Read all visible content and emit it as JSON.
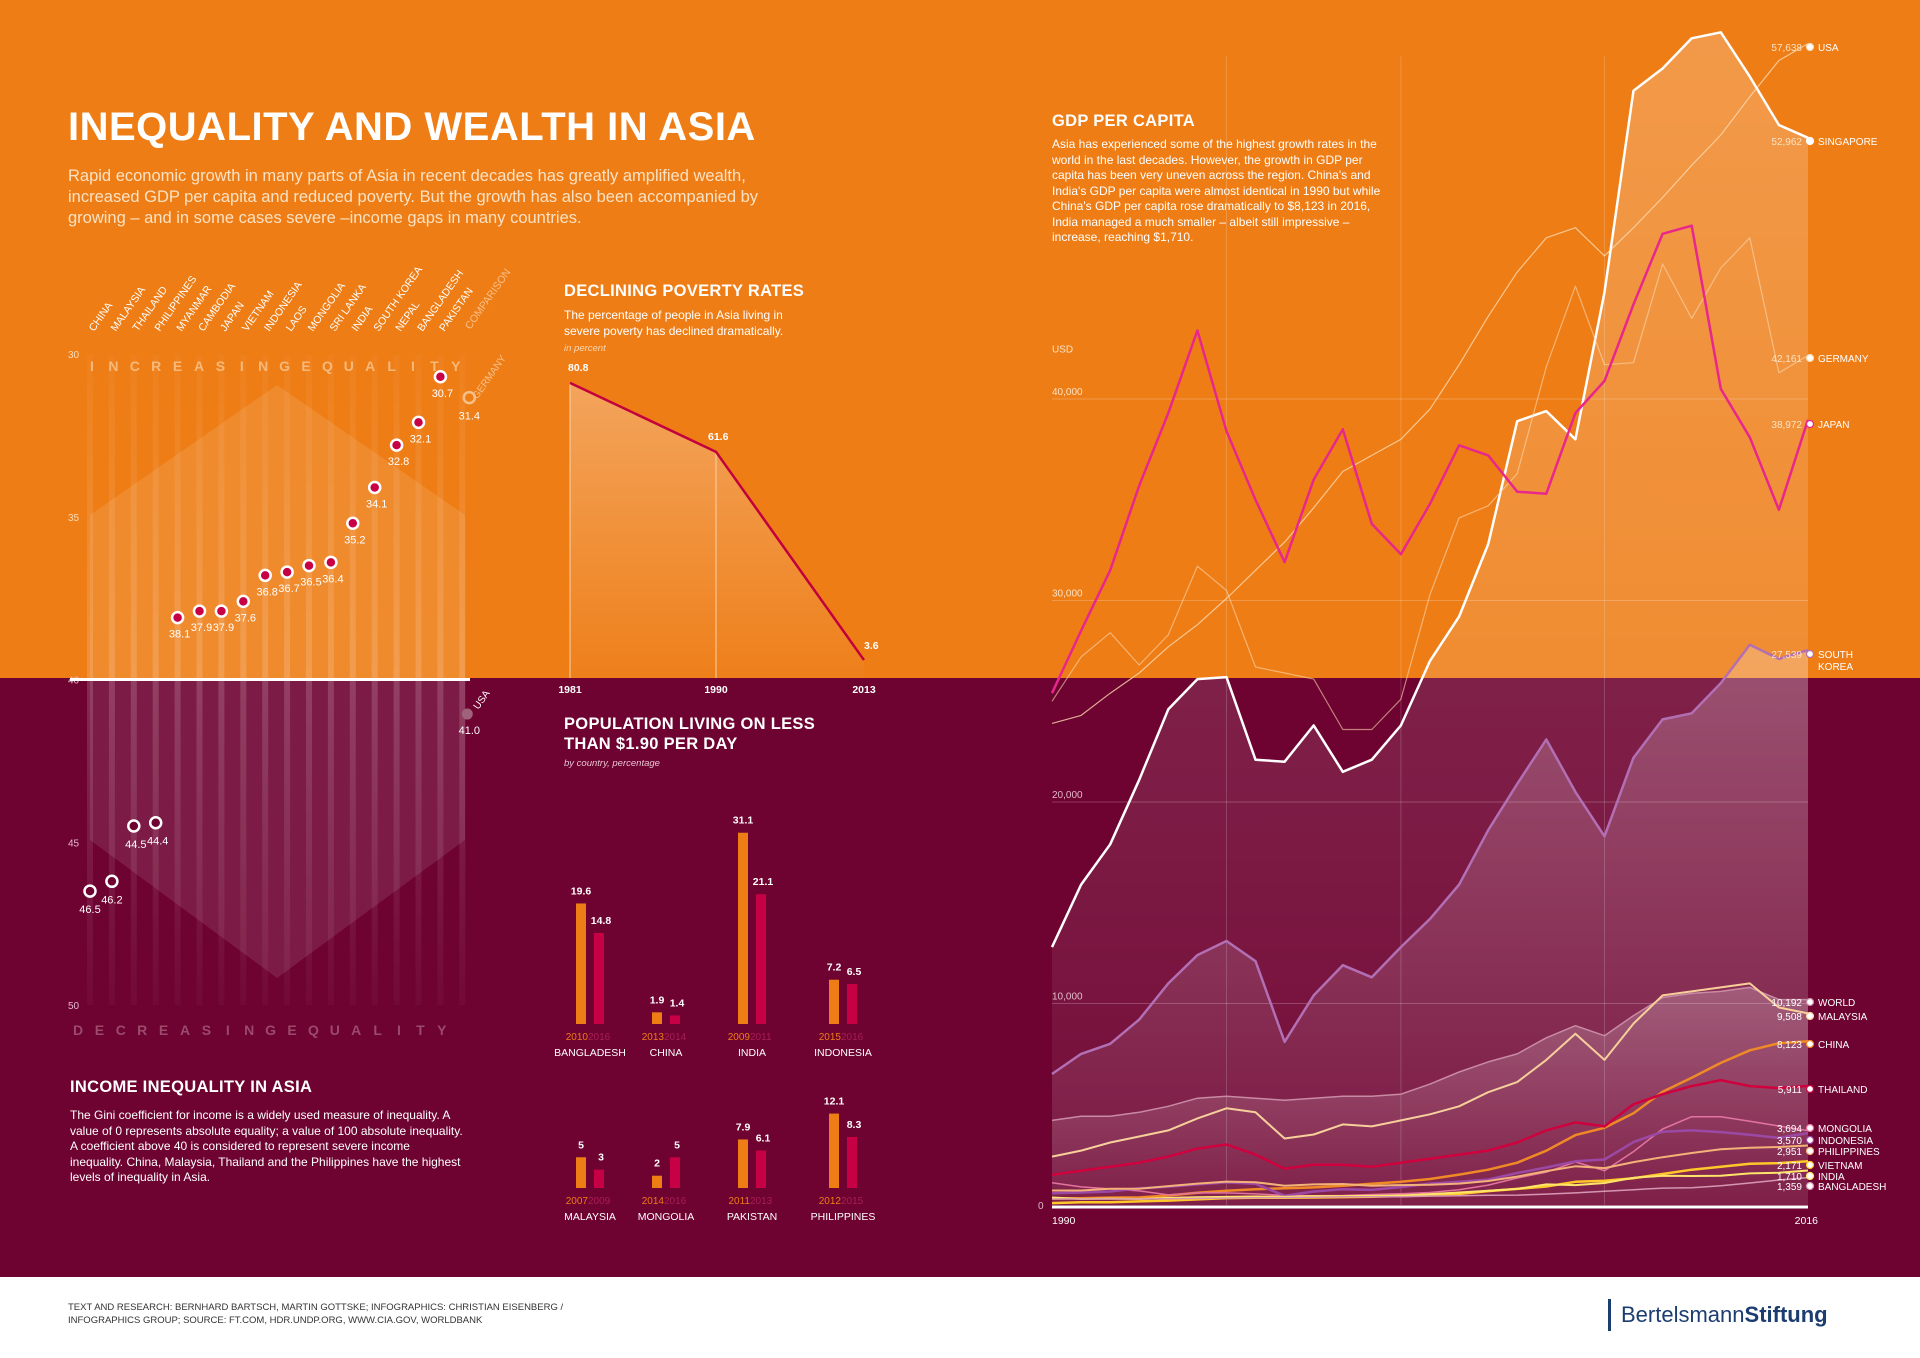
{
  "title": "INEQUALITY AND WEALTH IN ASIA",
  "intro": "Rapid economic growth in many parts of Asia in recent decades has greatly amplified wealth, increased GDP per capita and reduced poverty. But the growth has also been accompanied by growing – and in some cases severe –income gaps in many countries.",
  "income_section": {
    "title": "INCOME INEQUALITY IN ASIA",
    "text": "The Gini coefficient for income is a widely used measure of inequality. A value of 0 represents absolute equality; a value of 100 absolute inequality. A coefficient above 40 is considered to represent severe income inequality. China, Malaysia, Thailand and the Philippines have the highest levels of inequality in Asia.",
    "increasing_label": "INCREASINGEQUALITY",
    "decreasing_label": "DECREASINGEQUALITY",
    "comparison_label": "COMPARISON"
  },
  "poverty_section": {
    "title": "DECLINING POVERTY RATES",
    "text": "The percentage of people in Asia living in severe poverty has declined dramatically.",
    "unit": "in percent"
  },
  "pop_section": {
    "title_line1": "POPULATION LIVING ON LESS",
    "title_line2": "THAN $1.90 PER DAY",
    "unit": "by country, percentage"
  },
  "gdp_section": {
    "title": "GDP PER CAPITA",
    "text": "Asia has experienced some of the highest growth rates in the world in the last decades. However, the growth in GDP per capita has been very uneven across the region. China's and India's GDP per capita were almost identical in 1990 but while China's GDP per capita rose dramatically to $8,123 in 2016, India managed a much smaller – albeit still impressive – increase, reaching $1,710.",
    "y_unit": "USD"
  },
  "footer": {
    "credits": "TEXT AND RESEARCH: BERNHARD BARTSCH, MARTIN GOTTSKE; INFOGRAPHICS: CHRISTIAN EISENBERG / INFOGRAPHICS GROUP; SOURCE: FT.COM, HDR.UNDP.ORG, WWW.CIA.GOV, WORLDBANK",
    "logo_part1": "Bertelsmann",
    "logo_part2": "Stiftung"
  },
  "colors": {
    "orange": "#ee7d16",
    "wine": "#6e0230",
    "pink": "#c70046",
    "light_orange": "#f08a26"
  },
  "chart_data": [
    {
      "type": "scatter",
      "title": "INCOME INEQUALITY IN ASIA",
      "ylim": [
        30,
        50
      ],
      "yticks": [
        30,
        35,
        40,
        45,
        50
      ],
      "y_inverted": true,
      "categories": [
        "CHINA",
        "MALAYSIA",
        "THAILAND",
        "PHILIPPINES",
        "MYANMAR",
        "CAMBODIA",
        "JAPAN",
        "VIETNAM",
        "INDONESIA",
        "LAOS",
        "MONGOLIA",
        "SRI LANKA",
        "INDIA",
        "SOUTH KOREA",
        "NEPAL",
        "BANGLADESH",
        "PAKISTAN"
      ],
      "values": [
        46.5,
        46.2,
        44.5,
        44.4,
        38.1,
        37.9,
        37.9,
        37.6,
        36.8,
        36.7,
        36.5,
        36.4,
        35.2,
        34.1,
        32.8,
        32.1,
        30.7
      ],
      "comparison": [
        {
          "name": "GERMANY",
          "value": 31.4
        },
        {
          "name": "USA",
          "value": 41.0
        }
      ]
    },
    {
      "type": "area",
      "title": "DECLINING POVERTY RATES",
      "x": [
        "1981",
        "1990",
        "2013"
      ],
      "values": [
        80.8,
        61.6,
        3.6
      ],
      "value_labels": [
        "80.8",
        "61.6",
        "3.6"
      ]
    },
    {
      "type": "bar",
      "title": "POPULATION LIVING ON LESS THAN $1.90 PER DAY",
      "groups": [
        {
          "country": "BANGLADESH",
          "years": [
            "2010",
            "2016"
          ],
          "values": [
            19.6,
            14.8
          ]
        },
        {
          "country": "CHINA",
          "years": [
            "2013",
            "2014"
          ],
          "values": [
            1.9,
            1.4
          ]
        },
        {
          "country": "INDIA",
          "years": [
            "2009",
            "2011"
          ],
          "values": [
            31.1,
            21.1
          ]
        },
        {
          "country": "INDONESIA",
          "years": [
            "2015",
            "2016"
          ],
          "values": [
            7.2,
            6.5
          ]
        },
        {
          "country": "MALAYSIA",
          "years": [
            "2007",
            "2009"
          ],
          "values": [
            5,
            3
          ]
        },
        {
          "country": "MONGOLIA",
          "years": [
            "2014",
            "2016"
          ],
          "values": [
            2,
            5
          ]
        },
        {
          "country": "PAKISTAN",
          "years": [
            "2011",
            "2013"
          ],
          "values": [
            7.9,
            6.1
          ]
        },
        {
          "country": "PHILIPPINES",
          "years": [
            "2012",
            "2015"
          ],
          "values": [
            12.1,
            8.3
          ]
        }
      ]
    },
    {
      "type": "line",
      "title": "GDP PER CAPITA",
      "ylabel": "USD",
      "xlim": [
        1990,
        2016
      ],
      "ylim": [
        0,
        60000
      ],
      "yticks": [
        0,
        10000,
        20000,
        30000,
        40000
      ],
      "ytick_labels": [
        "0",
        "10,000",
        "20,000",
        "30,000",
        "40,000"
      ],
      "x_axis_labels": [
        "1990",
        "2016"
      ],
      "x": [
        1990,
        1991,
        1992,
        1993,
        1994,
        1995,
        1996,
        1997,
        1998,
        1999,
        2000,
        2001,
        2002,
        2003,
        2004,
        2005,
        2006,
        2007,
        2008,
        2009,
        2010,
        2011,
        2012,
        2013,
        2014,
        2015,
        2016
      ],
      "series": [
        {
          "name": "USA",
          "end_label": "57,638",
          "values": [
            23900,
            24300,
            25400,
            26400,
            27700,
            28800,
            30100,
            31500,
            32900,
            34600,
            36400,
            37200,
            38000,
            39500,
            41700,
            44100,
            46300,
            48000,
            48500,
            47100,
            48500,
            50000,
            51600,
            53100,
            55000,
            56800,
            57638
          ]
        },
        {
          "name": "SINGAPORE",
          "end_label": "52,962",
          "values": [
            12800,
            15900,
            17900,
            21100,
            24600,
            26100,
            26200,
            22100,
            22000,
            23800,
            21500,
            22100,
            23800,
            27000,
            29200,
            32800,
            38900,
            39400,
            38000,
            45300,
            55300,
            56400,
            57900,
            58200,
            56000,
            53600,
            52962
          ]
        },
        {
          "name": "GERMANY",
          "end_label": "42,161",
          "values": [
            25000,
            27200,
            28400,
            26800,
            28300,
            31700,
            30500,
            26700,
            26400,
            26100,
            23600,
            23600,
            25100,
            30300,
            34100,
            34700,
            36300,
            41600,
            45600,
            41700,
            41800,
            46700,
            44000,
            46500,
            48000,
            41300,
            42161
          ]
        },
        {
          "name": "JAPAN",
          "end_label": "38,972",
          "values": [
            25400,
            28500,
            31500,
            35700,
            39300,
            43400,
            38400,
            35000,
            31900,
            36000,
            38500,
            33800,
            32300,
            34800,
            37700,
            37200,
            35400,
            35300,
            39300,
            40900,
            44700,
            48200,
            48600,
            40500,
            38100,
            34500,
            38972
          ]
        },
        {
          "name": "SOUTH KOREA",
          "end_label": "27,539",
          "values": [
            6500,
            7500,
            8000,
            9200,
            11000,
            12400,
            13100,
            12100,
            8100,
            10400,
            11900,
            11300,
            12800,
            14200,
            15900,
            18600,
            20900,
            23100,
            20500,
            18300,
            22200,
            24100,
            24400,
            25900,
            27800,
            27100,
            27539
          ]
        },
        {
          "name": "WORLD",
          "end_label": "10,192",
          "values": [
            4200,
            4400,
            4400,
            4600,
            4900,
            5300,
            5400,
            5300,
            5200,
            5300,
            5400,
            5400,
            5500,
            6000,
            6600,
            7100,
            7500,
            8300,
            8900,
            8400,
            9400,
            10300,
            10500,
            10600,
            10800,
            10200,
            10192
          ]
        },
        {
          "name": "MALAYSIA",
          "end_label": "9,508",
          "values": [
            2400,
            2700,
            3100,
            3400,
            3700,
            4300,
            4800,
            4600,
            3300,
            3500,
            4000,
            3900,
            4200,
            4500,
            4900,
            5600,
            6100,
            7200,
            8500,
            7200,
            9000,
            10400,
            10600,
            10800,
            11000,
            9800,
            9508
          ]
        },
        {
          "name": "CHINA",
          "end_label": "8,123",
          "values": [
            318,
            333,
            366,
            377,
            473,
            610,
            709,
            782,
            829,
            873,
            959,
            1053,
            1149,
            1289,
            1509,
            1753,
            2099,
            2694,
            3468,
            3832,
            4550,
            5618,
            6317,
            7050,
            7679,
            8028,
            8123
          ]
        },
        {
          "name": "THAILAND",
          "end_label": "5,911",
          "values": [
            1500,
            1700,
            1900,
            2100,
            2400,
            2800,
            3000,
            2500,
            1800,
            2000,
            2000,
            1900,
            2100,
            2300,
            2500,
            2700,
            3100,
            3700,
            4100,
            3900,
            5000,
            5500,
            5900,
            6200,
            5900,
            5800,
            5911
          ]
        },
        {
          "name": "MONGOLIA",
          "end_label": "3,694",
          "values": [
            1100,
            900,
            800,
            700,
            500,
            600,
            600,
            550,
            480,
            460,
            470,
            520,
            560,
            620,
            760,
            990,
            1340,
            1630,
            2140,
            1700,
            2650,
            3770,
            4380,
            4380,
            4160,
            3920,
            3694
          ]
        },
        {
          "name": "INDONESIA",
          "end_label": "3,570",
          "values": [
            580,
            620,
            670,
            830,
            910,
            1020,
            1120,
            1050,
            460,
            670,
            780,
            750,
            890,
            1060,
            1150,
            1260,
            1590,
            1860,
            2170,
            2260,
            3120,
            3640,
            3700,
            3620,
            3490,
            3330,
            3570
          ]
        },
        {
          "name": "PHILIPPINES",
          "end_label": "2,951",
          "values": [
            720,
            720,
            810,
            810,
            940,
            1060,
            1160,
            1130,
            960,
            1020,
            1040,
            960,
            990,
            1000,
            1060,
            1190,
            1410,
            1680,
            1920,
            1830,
            2130,
            2370,
            2580,
            2770,
            2840,
            2880,
            2951
          ]
        },
        {
          "name": "VIETNAM",
          "end_label": "2,171",
          "values": [
            95,
            140,
            140,
            180,
            220,
            280,
            340,
            360,
            360,
            370,
            390,
            410,
            440,
            490,
            550,
            690,
            800,
            920,
            1150,
            1200,
            1330,
            1540,
            1750,
            1900,
            2050,
            2080,
            2171
          ]
        },
        {
          "name": "INDIA",
          "end_label": "1,710",
          "values": [
            370,
            300,
            320,
            300,
            350,
            380,
            400,
            420,
            410,
            440,
            440,
            450,
            470,
            540,
            620,
            710,
            800,
            1020,
            990,
            1090,
            1350,
            1450,
            1440,
            1450,
            1570,
            1600,
            1710
          ]
        },
        {
          "name": "BANGLADESH",
          "end_label": "1,359",
          "values": [
            300,
            300,
            300,
            300,
            310,
            330,
            340,
            360,
            370,
            380,
            410,
            410,
            410,
            440,
            460,
            480,
            490,
            540,
            600,
            680,
            760,
            840,
            860,
            960,
            1090,
            1240,
            1359
          ]
        }
      ]
    }
  ]
}
